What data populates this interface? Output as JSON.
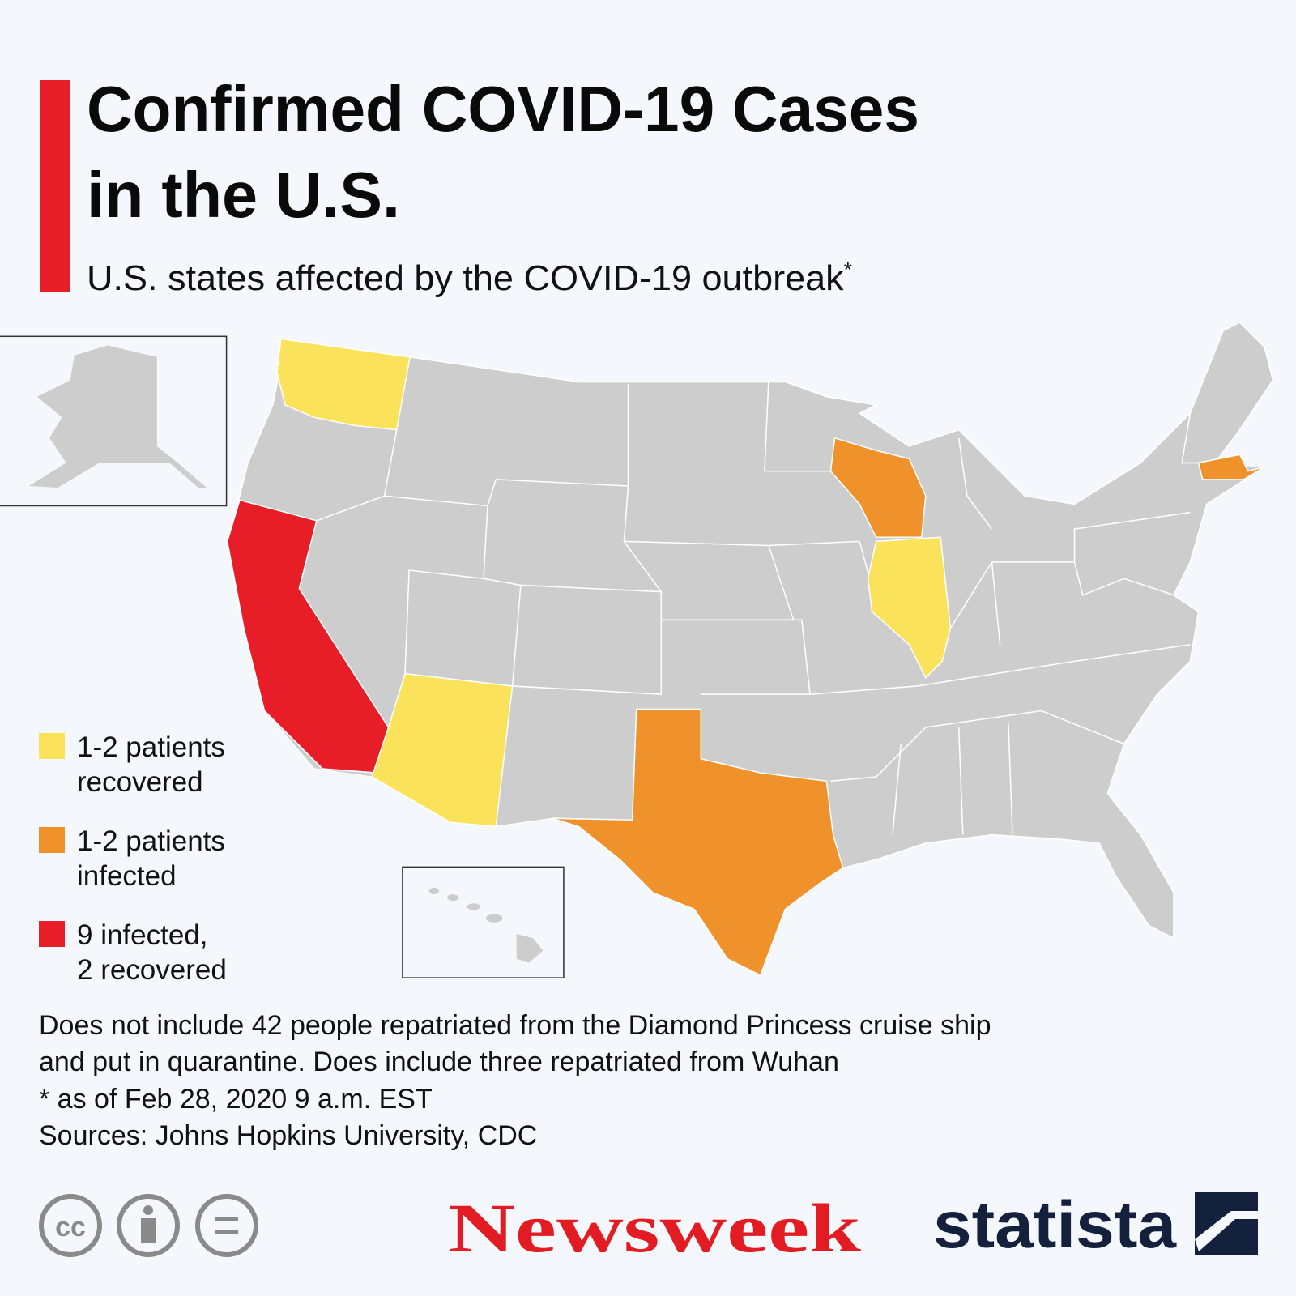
{
  "header": {
    "title_lines": [
      "Confirmed COVID-19 Cases",
      "in the U.S."
    ],
    "subtitle": "U.S. states affected by the COVID-19 outbreak",
    "subtitle_mark": "*"
  },
  "map": {
    "base_color": "#cdcdcd"
  },
  "legend": {
    "items": [
      {
        "lines": [
          "1-2 patients",
          "recovered"
        ],
        "color": "#fae35a"
      },
      {
        "lines": [
          "1-2 patients",
          "infected"
        ],
        "color": "#ef922c"
      },
      {
        "lines": [
          "9 infected,",
          "2 recovered"
        ],
        "color": "#e71d27"
      }
    ]
  },
  "notes": [
    "Does not include 42 people repatriated from the Diamond Princess cruise ship",
    "and put in quarantine. Does include three repatriated from Wuhan",
    "* as of Feb 28, 2020 9 a.m. EST",
    "Sources: Johns Hopkins University, CDC"
  ],
  "footer": {
    "publisher": "Newsweek",
    "brand": "statista"
  }
}
